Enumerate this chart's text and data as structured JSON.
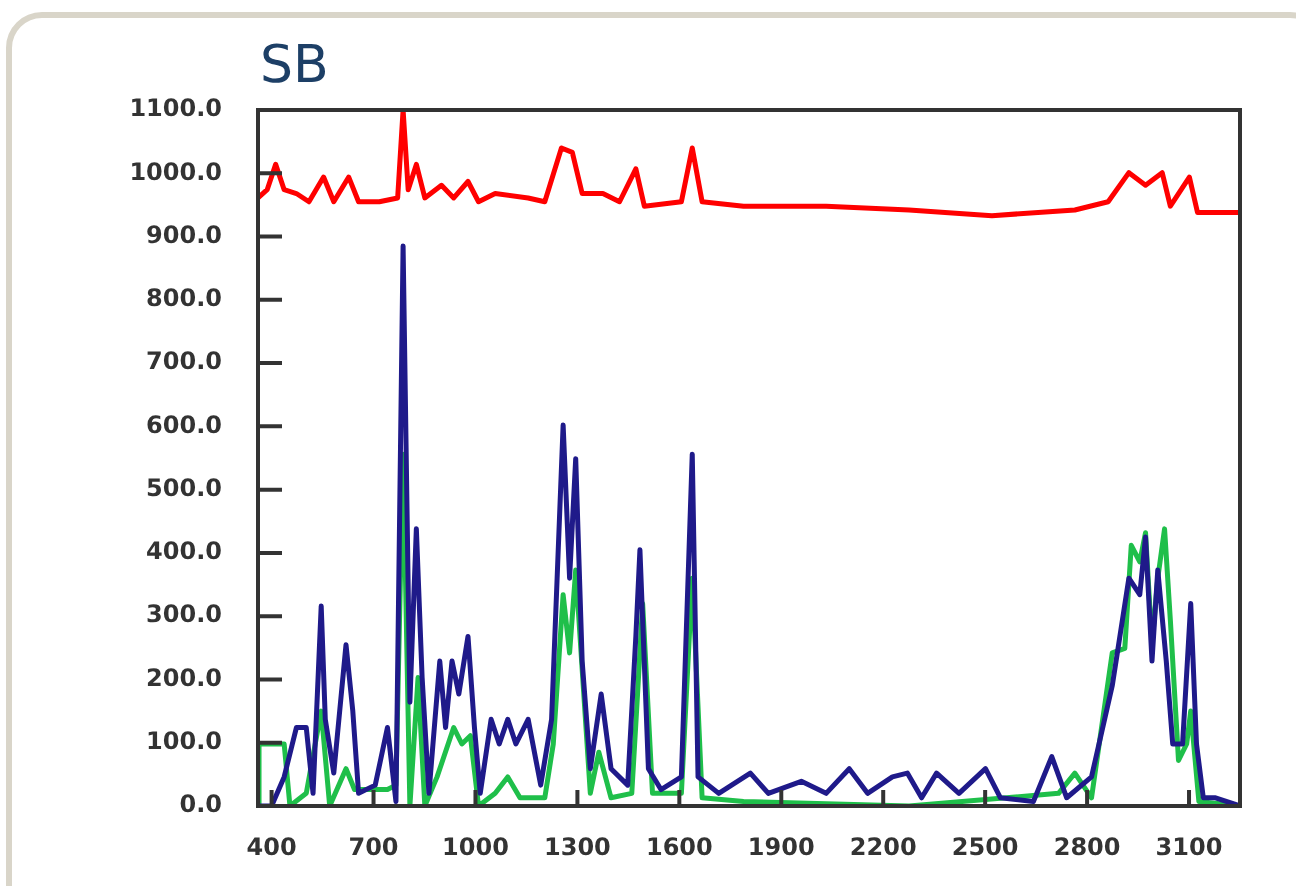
{
  "chart_data": {
    "type": "line",
    "title": "SB",
    "xlim": [
      360,
      3250
    ],
    "ylim": [
      0,
      1100
    ],
    "xticks": [
      400,
      700,
      1000,
      1300,
      1600,
      1900,
      2200,
      2500,
      2800,
      3100
    ],
    "yticks": [
      {
        "value": 0,
        "label": "0.0"
      },
      {
        "value": 100,
        "label": "100.0"
      },
      {
        "value": 200,
        "label": "200.0"
      },
      {
        "value": 300,
        "label": "300.0"
      },
      {
        "value": 400,
        "label": "400.0"
      },
      {
        "value": 500,
        "label": "500.0"
      },
      {
        "value": 600,
        "label": "600.0"
      },
      {
        "value": 700,
        "label": "700.0"
      },
      {
        "value": 800,
        "label": "800.0"
      },
      {
        "value": 900,
        "label": "900.0"
      },
      {
        "value": 1000,
        "label": "1000.0"
      },
      {
        "value": 1100,
        "label": "1100.0"
      }
    ],
    "grid": false,
    "legend": false,
    "marker": "none",
    "line_style": "solid",
    "series": [
      {
        "color": "#ff0000",
        "x": [
          360,
          387,
          412,
          437,
          473,
          510,
          553,
          583,
          627,
          656,
          717,
          771,
          787,
          802,
          826,
          851,
          900,
          936,
          978,
          1009,
          1058,
          1155,
          1204,
          1253,
          1285,
          1314,
          1375,
          1424,
          1472,
          1497,
          1606,
          1638,
          1667,
          1789,
          2032,
          2276,
          2520,
          2764,
          2862,
          2923,
          2972,
          3021,
          3045,
          3101,
          3125,
          3250
        ],
        "values": [
          961,
          974,
          1014,
          974,
          968,
          955,
          994,
          955,
          994,
          955,
          955,
          961,
          1100,
          974,
          1014,
          961,
          981,
          961,
          987,
          955,
          968,
          961,
          955,
          1040,
          1033,
          968,
          968,
          955,
          1007,
          948,
          955,
          1040,
          955,
          948,
          948,
          942,
          933,
          942,
          955,
          1001,
          981,
          1001,
          948,
          994,
          938,
          938
        ]
      },
      {
        "color": "#1f1a8a",
        "x": [
          360,
          400,
          437,
          473,
          502,
          522,
          546,
          558,
          583,
          619,
          639,
          656,
          705,
          741,
          766,
          787,
          807,
          826,
          843,
          863,
          895,
          912,
          931,
          951,
          978,
          997,
          1014,
          1046,
          1070,
          1095,
          1119,
          1155,
          1192,
          1224,
          1258,
          1277,
          1295,
          1314,
          1338,
          1370,
          1399,
          1448,
          1472,
          1484,
          1509,
          1546,
          1606,
          1638,
          1655,
          1716,
          1809,
          1862,
          1959,
          2032,
          2100,
          2154,
          2227,
          2271,
          2313,
          2357,
          2423,
          2501,
          2545,
          2642,
          2696,
          2740,
          2813,
          2874,
          2923,
          2955,
          2972,
          2991,
          3008,
          3033,
          3052,
          3081,
          3105,
          3122,
          3142,
          3178,
          3250
        ],
        "values": [
          0,
          0,
          46,
          124,
          124,
          20,
          316,
          137,
          52,
          255,
          150,
          20,
          33,
          124,
          7,
          885,
          164,
          438,
          203,
          20,
          229,
          124,
          229,
          177,
          268,
          124,
          20,
          137,
          98,
          137,
          98,
          137,
          33,
          137,
          602,
          360,
          549,
          229,
          59,
          177,
          59,
          33,
          268,
          405,
          59,
          26,
          46,
          556,
          46,
          20,
          52,
          20,
          39,
          20,
          59,
          20,
          46,
          52,
          13,
          52,
          20,
          59,
          13,
          7,
          78,
          13,
          46,
          190,
          360,
          334,
          425,
          229,
          373,
          229,
          98,
          98,
          320,
          98,
          13,
          13,
          0
        ]
      },
      {
        "color": "#1fbf4a",
        "x": [
          360,
          363,
          437,
          454,
          502,
          546,
          571,
          619,
          644,
          741,
          766,
          787,
          807,
          831,
          851,
          887,
          936,
          960,
          985,
          1009,
          1058,
          1095,
          1131,
          1204,
          1229,
          1258,
          1277,
          1295,
          1314,
          1338,
          1363,
          1399,
          1460,
          1477,
          1492,
          1521,
          1606,
          1638,
          1667,
          1789,
          2276,
          2716,
          2764,
          2813,
          2874,
          2911,
          2930,
          2955,
          2972,
          2991,
          3008,
          3028,
          3045,
          3069,
          3093,
          3105,
          3129,
          3250
        ],
        "values": [
          0,
          98,
          98,
          0,
          20,
          150,
          0,
          59,
          26,
          26,
          33,
          556,
          0,
          203,
          0,
          46,
          124,
          98,
          111,
          0,
          20,
          46,
          13,
          13,
          98,
          334,
          242,
          373,
          216,
          20,
          85,
          13,
          20,
          177,
          320,
          20,
          20,
          360,
          13,
          7,
          0,
          20,
          52,
          13,
          242,
          249,
          412,
          386,
          432,
          255,
          360,
          438,
          294,
          72,
          98,
          150,
          7,
          0
        ]
      }
    ]
  }
}
